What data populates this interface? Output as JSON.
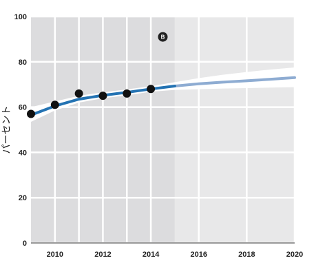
{
  "chart_data": {
    "type": "line",
    "ylabel": "パーセント",
    "xlim": [
      2009,
      2020
    ],
    "ylim": [
      0,
      100
    ],
    "x_ticks": [
      "2010",
      "2012",
      "2014",
      "2016",
      "2018",
      "2020"
    ],
    "y_ticks": [
      "0",
      "20",
      "40",
      "60",
      "80",
      "100"
    ],
    "projection_start": 2015,
    "badge": "B",
    "badge_position": {
      "x": 2014.5,
      "y": 91
    },
    "grid": true,
    "colors": {
      "historical_band": "#dcdcde",
      "projection_band": "#e8e8e9",
      "grid": "#ffffff",
      "confidence_band": "#ffffff",
      "trend_line": "#2473b3",
      "projection_line": "#8eacd2",
      "points": "#111111"
    },
    "series": [
      {
        "type": "scatter",
        "x": [
          2009,
          2010,
          2011,
          2012,
          2013,
          2014
        ],
        "values": [
          57,
          61,
          66,
          65,
          66,
          68
        ]
      },
      {
        "type": "line",
        "x": [
          2009,
          2010,
          2011,
          2012,
          2013,
          2014,
          2015
        ],
        "values": [
          56.5,
          60.5,
          63.5,
          65.2,
          66.5,
          68,
          69.3
        ]
      },
      {
        "type": "line",
        "x": [
          2015,
          2016,
          2017,
          2018,
          2019,
          2020
        ],
        "values": [
          69.3,
          70.3,
          71,
          71.6,
          72.3,
          73
        ]
      },
      {
        "type": "area",
        "x": [
          2009,
          2010,
          2011,
          2012,
          2013,
          2014,
          2015,
          2016,
          2017,
          2018,
          2019,
          2020
        ],
        "upper": [
          60,
          62.5,
          65,
          66.5,
          67.8,
          69.2,
          71,
          72.8,
          74.3,
          75.5,
          76.6,
          77.5
        ],
        "lower": [
          53.5,
          58.5,
          62,
          63.9,
          65.2,
          66.8,
          67.6,
          67.9,
          68.2,
          68.4,
          68.6,
          68.8
        ]
      }
    ]
  }
}
